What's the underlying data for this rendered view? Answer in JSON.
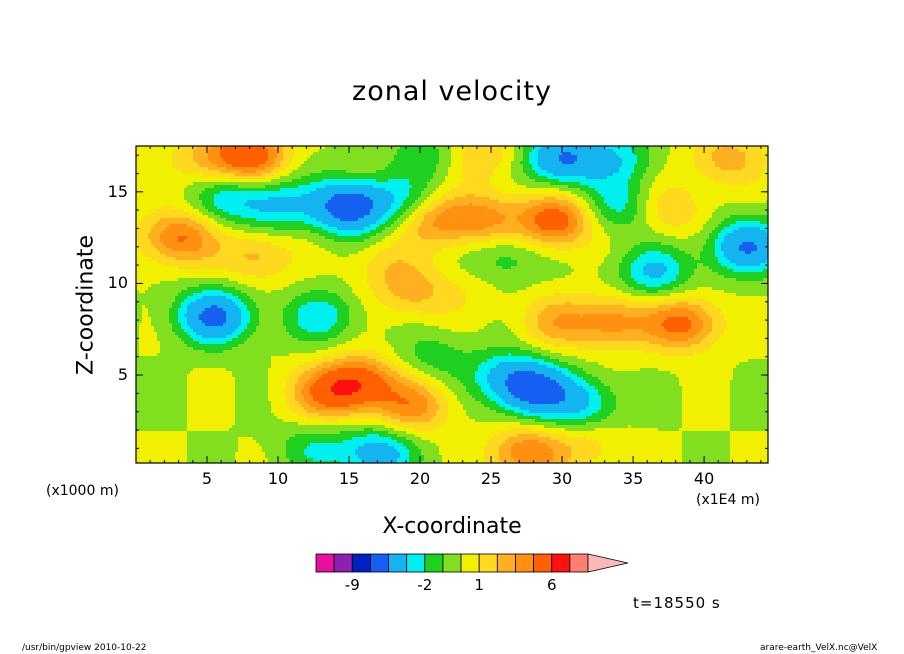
{
  "chart_data": {
    "type": "heatmap",
    "title": "zonal velocity",
    "xlabel": "X-coordinate",
    "ylabel": "Z-coordinate",
    "x_unit_label": "(x1E4 m)",
    "y_unit_label": "(x1000 m)",
    "xlim": [
      0,
      44.5
    ],
    "ylim": [
      0.2,
      17.5
    ],
    "x_ticks": [
      5,
      10,
      15,
      20,
      25,
      30,
      35,
      40
    ],
    "y_ticks": [
      5,
      10,
      15
    ],
    "colorbar": {
      "levels": [
        -15,
        -12,
        -9,
        -7,
        -5,
        -3,
        -2,
        -1,
        0,
        1,
        2,
        3,
        4,
        6,
        9,
        12,
        15
      ],
      "colors": [
        "#e6129e",
        "#8f1fb0",
        "#0020c0",
        "#1560f0",
        "#14b4f0",
        "#00f0f0",
        "#20d020",
        "#80e020",
        "#f0f000",
        "#ffd820",
        "#ffb020",
        "#ff9010",
        "#ff6000",
        "#ff1010",
        "#ff8070",
        "#ffb8b8"
      ],
      "tick_labels": [
        {
          "value": -9,
          "label": "-9"
        },
        {
          "value": -2,
          "label": "-2"
        },
        {
          "value": 1,
          "label": "1"
        },
        {
          "value": 6,
          "label": "6"
        }
      ]
    },
    "time_label": "t=18550 s",
    "field_blobs": [
      {
        "x": 3.0,
        "z": 12.5,
        "v": 4.2
      },
      {
        "x": 5.5,
        "z": 8.2,
        "v": -5.5
      },
      {
        "x": 8.5,
        "z": 11.5,
        "v": 2.4
      },
      {
        "x": 6.5,
        "z": 14.6,
        "v": -2.6
      },
      {
        "x": 10.0,
        "z": 14.3,
        "v": -3.0
      },
      {
        "x": 8.0,
        "z": 17.0,
        "v": 5.0
      },
      {
        "x": 5.0,
        "z": 16.8,
        "v": 2.0
      },
      {
        "x": 15.0,
        "z": 14.2,
        "v": -6.5
      },
      {
        "x": 13.0,
        "z": 8.2,
        "v": -2.6
      },
      {
        "x": 17.5,
        "z": 11.0,
        "v": 1.4
      },
      {
        "x": 15.8,
        "z": 4.6,
        "v": 4.6
      },
      {
        "x": 13.5,
        "z": 4.0,
        "v": 3.8
      },
      {
        "x": 19.5,
        "z": 3.3,
        "v": 3.4
      },
      {
        "x": 19.0,
        "z": 14.5,
        "v": -2.2
      },
      {
        "x": 21.0,
        "z": 13.5,
        "v": 3.2
      },
      {
        "x": 19.5,
        "z": 9.5,
        "v": 2.2
      },
      {
        "x": 21.0,
        "z": 6.0,
        "v": -1.5
      },
      {
        "x": 17.0,
        "z": 0.7,
        "v": -4.0
      },
      {
        "x": 12.5,
        "z": 1.0,
        "v": -1.8
      },
      {
        "x": 20.5,
        "z": 17.0,
        "v": -1.6
      },
      {
        "x": 2.0,
        "z": 4.5,
        "v": 0.0
      },
      {
        "x": 28.0,
        "z": 4.2,
        "v": -5.5
      },
      {
        "x": 26.0,
        "z": 5.0,
        "v": -2.6
      },
      {
        "x": 31.5,
        "z": 3.4,
        "v": -3.0
      },
      {
        "x": 29.5,
        "z": 13.4,
        "v": 5.0
      },
      {
        "x": 24.5,
        "z": 13.5,
        "v": 3.2
      },
      {
        "x": 26.0,
        "z": 11.5,
        "v": -1.8
      },
      {
        "x": 29.5,
        "z": 7.9,
        "v": 2.4
      },
      {
        "x": 33.5,
        "z": 7.9,
        "v": 3.4
      },
      {
        "x": 38.5,
        "z": 7.8,
        "v": 4.4
      },
      {
        "x": 34.0,
        "z": 14.2,
        "v": -2.5
      },
      {
        "x": 30.0,
        "z": 16.8,
        "v": -5.2
      },
      {
        "x": 34.0,
        "z": 16.8,
        "v": -2.4
      },
      {
        "x": 24.5,
        "z": 17.0,
        "v": 2.0
      },
      {
        "x": 37.5,
        "z": 14.0,
        "v": 2.0
      },
      {
        "x": 36.5,
        "z": 10.6,
        "v": -3.2
      },
      {
        "x": 43.0,
        "z": 12.0,
        "v": -5.0
      },
      {
        "x": 41.5,
        "z": 16.8,
        "v": 2.5
      },
      {
        "x": 27.5,
        "z": 0.7,
        "v": 4.0
      },
      {
        "x": 32.0,
        "z": 1.2,
        "v": 1.5
      },
      {
        "x": 40.0,
        "z": 3.4,
        "v": 0.0
      },
      {
        "x": 23.2,
        "z": 9.5,
        "v": 0.7
      }
    ]
  },
  "footer": {
    "left": "/usr/bin/gpview   2010-10-22",
    "right": "arare-earth_VelX.nc@VelX"
  }
}
